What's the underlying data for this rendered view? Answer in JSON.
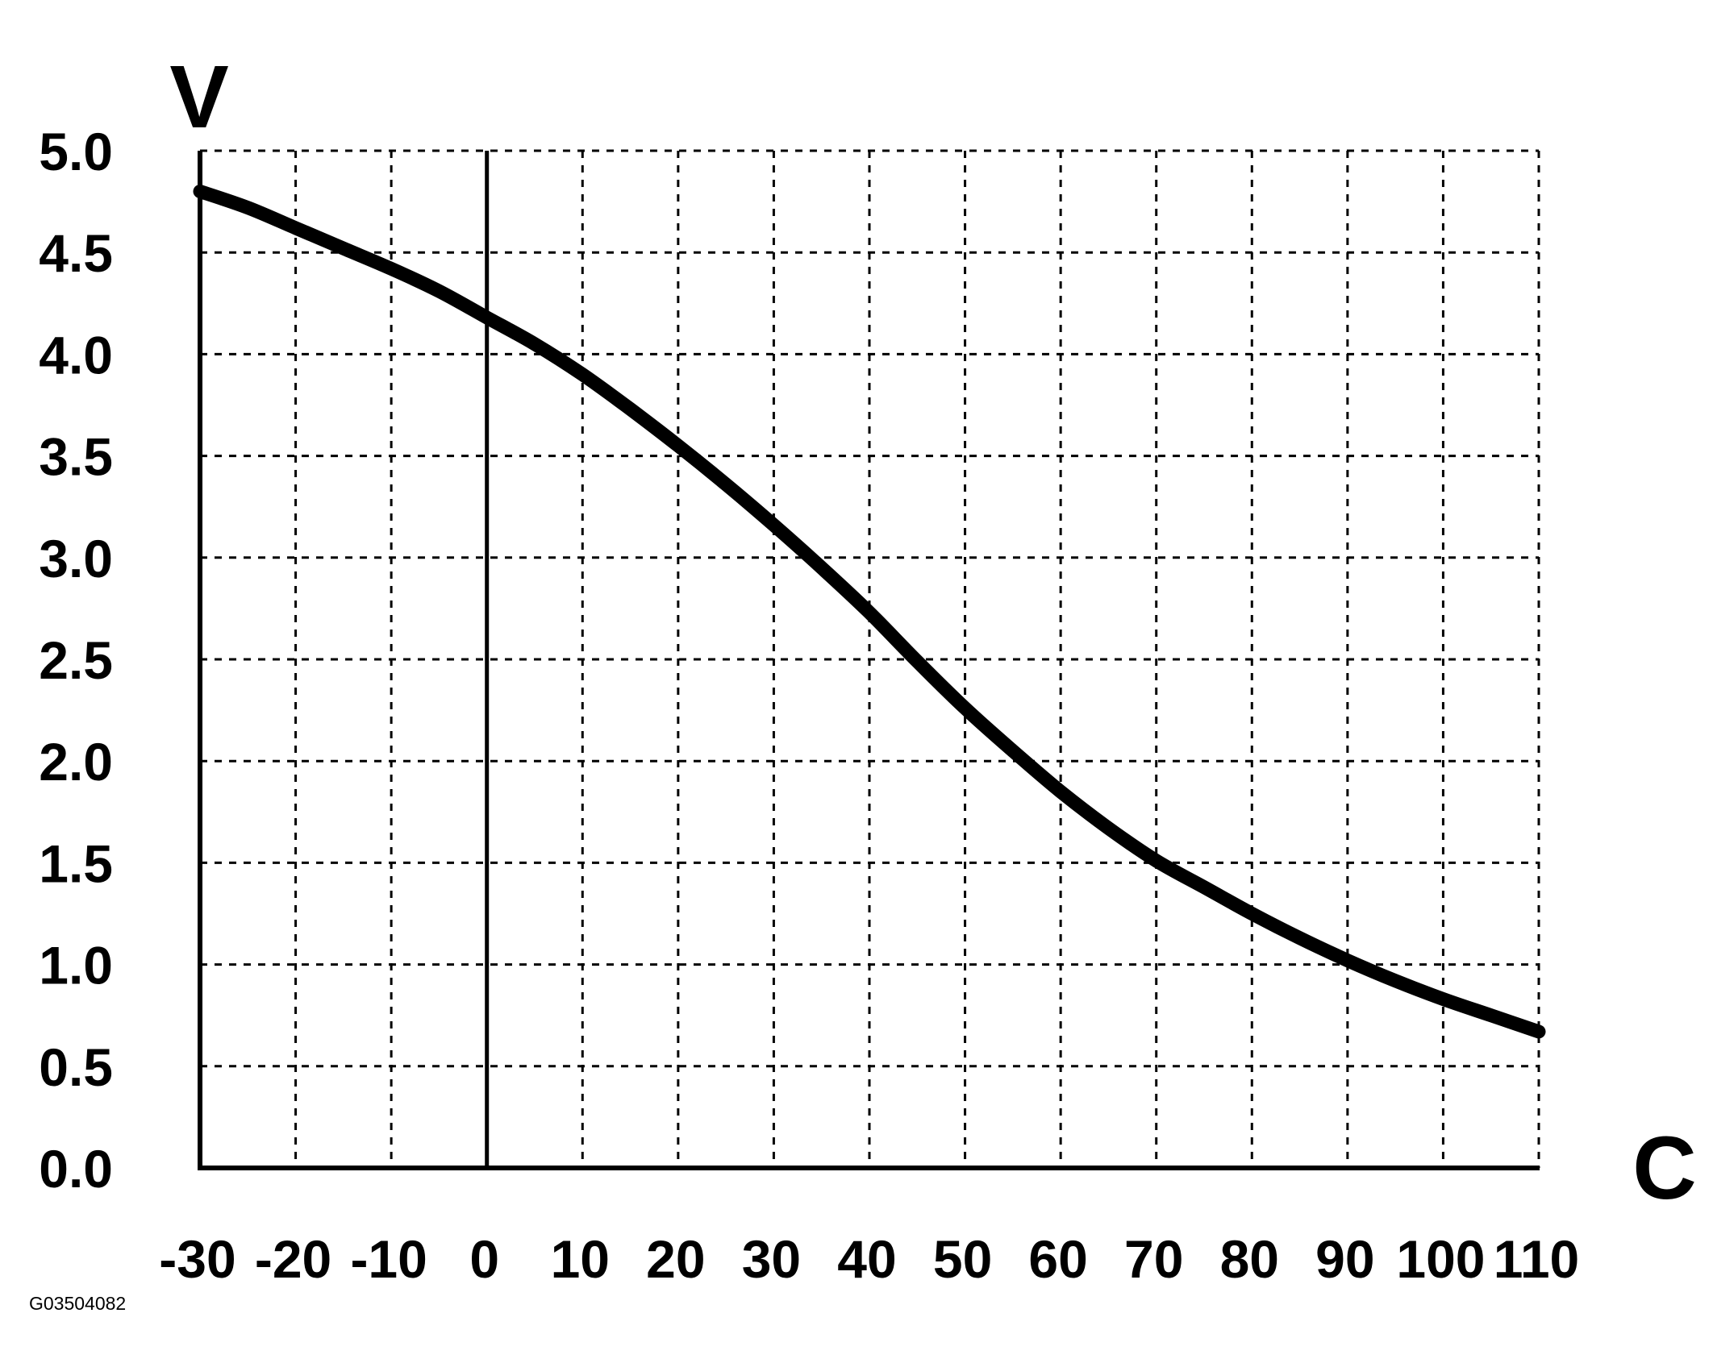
{
  "figure_id": "G03504082",
  "chart_data": {
    "type": "line",
    "title": "",
    "xlabel": "C",
    "ylabel": "V",
    "xlim": [
      -30,
      110
    ],
    "ylim": [
      0.0,
      5.0
    ],
    "x_ticks": [
      -30,
      -20,
      -10,
      0,
      10,
      20,
      30,
      40,
      50,
      60,
      70,
      80,
      90,
      100,
      110
    ],
    "x_tick_labels": [
      "-30",
      "-20",
      "-10",
      "0",
      "10",
      "20",
      "30",
      "40",
      "50",
      "60",
      "70",
      "80",
      "90",
      "100",
      "110"
    ],
    "y_ticks": [
      0.0,
      0.5,
      1.0,
      1.5,
      2.0,
      2.5,
      3.0,
      3.5,
      4.0,
      4.5,
      5.0
    ],
    "y_tick_labels": [
      "0.0",
      "0.5",
      "1.0",
      "1.5",
      "2.0",
      "2.5",
      "3.0",
      "3.5",
      "4.0",
      "4.5",
      "5.0"
    ],
    "grid": true,
    "grid_style": "dotted",
    "legend": "none",
    "line_color": "#000000",
    "series": [
      {
        "x": [
          -30,
          -25,
          -20,
          -15,
          -10,
          -5,
          0,
          5,
          10,
          15,
          20,
          25,
          30,
          35,
          40,
          45,
          50,
          55,
          60,
          65,
          70,
          75,
          80,
          85,
          90,
          95,
          100,
          105,
          110
        ],
        "y": [
          4.8,
          4.72,
          4.62,
          4.52,
          4.42,
          4.31,
          4.18,
          4.05,
          3.9,
          3.73,
          3.55,
          3.36,
          3.16,
          2.95,
          2.73,
          2.49,
          2.26,
          2.05,
          1.85,
          1.67,
          1.51,
          1.38,
          1.25,
          1.13,
          1.02,
          0.92,
          0.83,
          0.75,
          0.67
        ]
      }
    ]
  }
}
